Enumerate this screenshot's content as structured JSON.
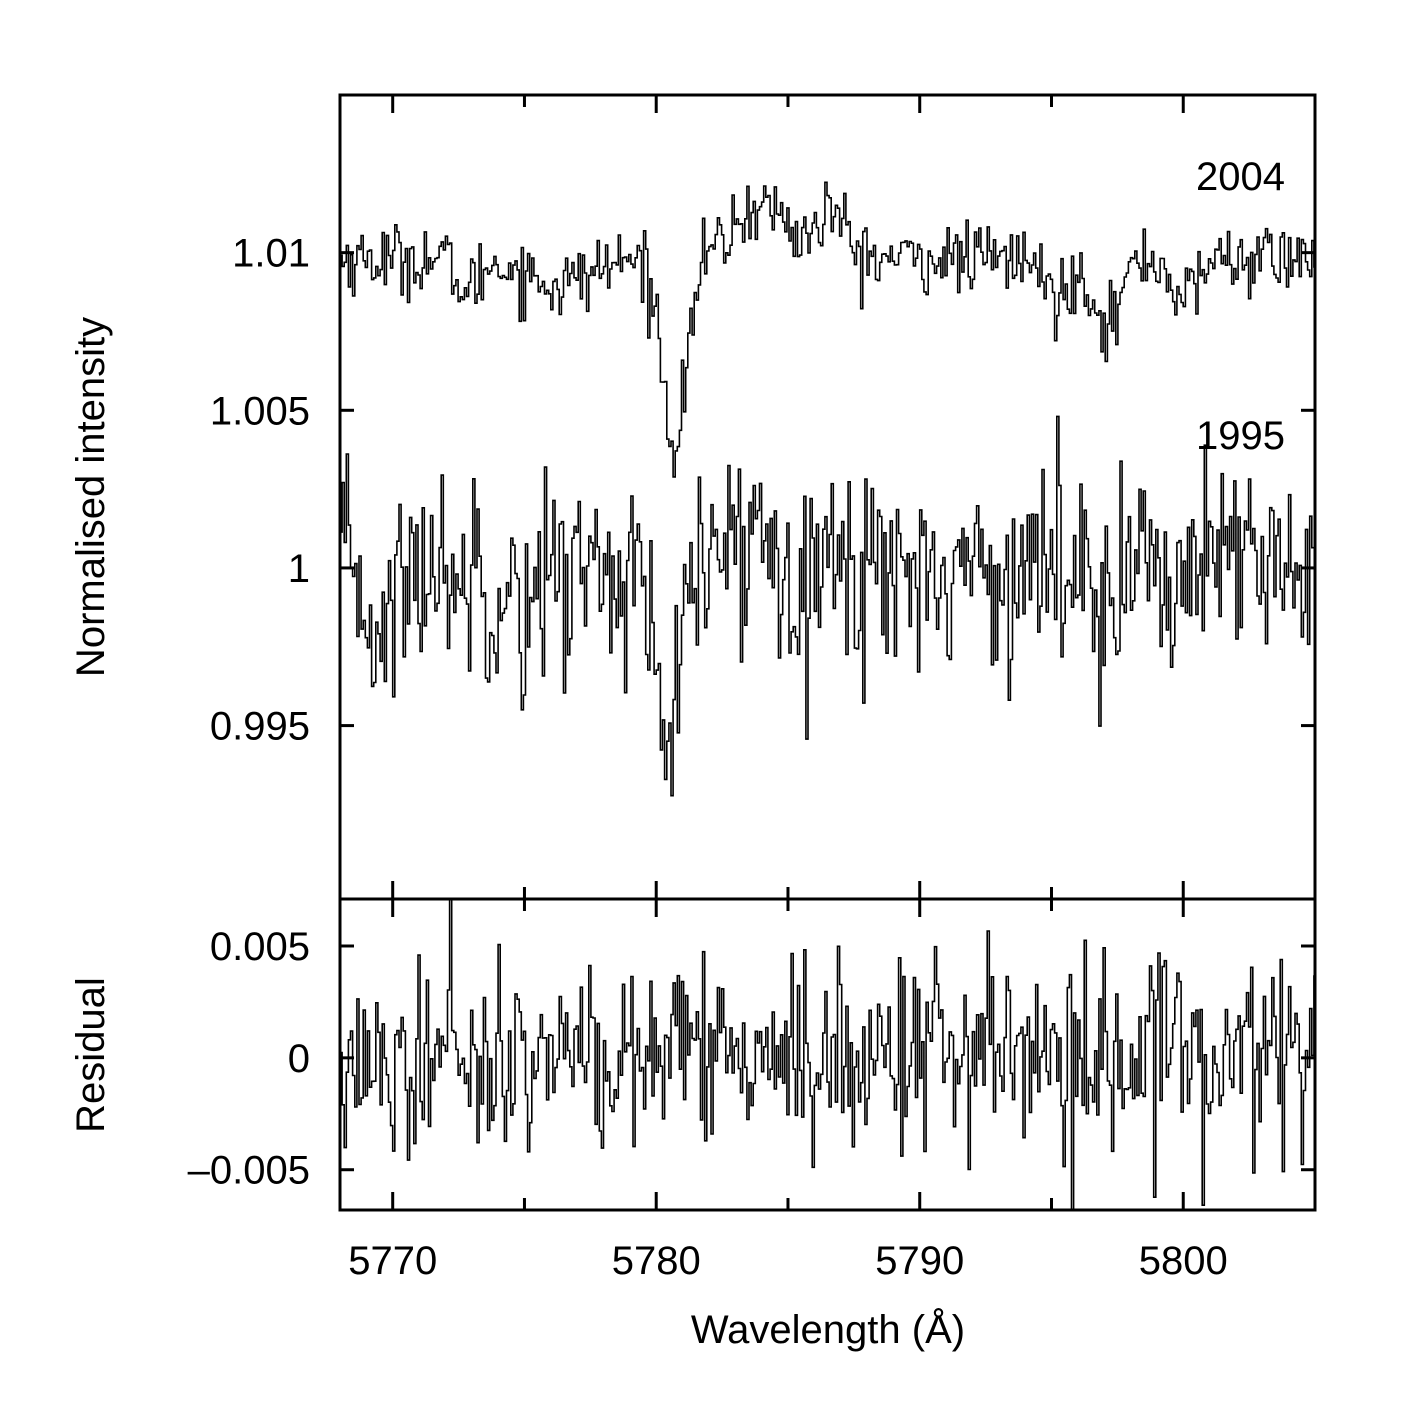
{
  "chart_data": [
    {
      "panel": "top",
      "type": "line",
      "ylabel": "Normalised intensity",
      "xlim": [
        5768,
        5805
      ],
      "ylim": [
        0.9895,
        1.015
      ],
      "yticks": [
        {
          "value": 1.01,
          "label": "1.01"
        },
        {
          "value": 1.005,
          "label": "1.005"
        },
        {
          "value": 1.0,
          "label": "1"
        },
        {
          "value": 0.995,
          "label": "0.995"
        }
      ],
      "series": [
        {
          "name": "2004",
          "step": 0.08,
          "baseline": 1.0098,
          "features": [
            {
              "center": 5780.65,
              "depth": 0.0058,
              "width": 0.45
            },
            {
              "center": 5776.2,
              "depth": 0.0008,
              "width": 1.2
            },
            {
              "center": 5797.1,
              "depth": 0.002,
              "width": 0.5
            },
            {
              "center": 5795.2,
              "depth": 0.0012,
              "width": 0.5
            },
            {
              "center": 5800.0,
              "depth": 0.0013,
              "width": 0.45
            },
            {
              "center": 5772.8,
              "depth": 0.001,
              "width": 0.4
            }
          ],
          "bumps": [
            {
              "center": 5784.0,
              "height": 0.0017,
              "width": 1.0
            },
            {
              "center": 5786.6,
              "height": 0.0015,
              "width": 0.5
            }
          ],
          "noise": 0.00055
        },
        {
          "name": "1995",
          "step": 0.08,
          "baseline": 0.99995,
          "features": [
            {
              "center": 5780.4,
              "depth": 0.0055,
              "width": 0.5
            },
            {
              "center": 5769.5,
              "depth": 0.002,
              "width": 0.5
            },
            {
              "center": 5774.8,
              "depth": 0.001,
              "width": 0.6
            }
          ],
          "bumps": [
            {
              "center": 5783.8,
              "height": 0.001,
              "width": 1.2
            }
          ],
          "noise": 0.0016
        }
      ],
      "annotations": [
        "2004",
        "1995"
      ]
    },
    {
      "panel": "bottom",
      "type": "line",
      "ylabel": "Residual",
      "xlabel": "Wavelength (Å)",
      "xlim": [
        5768,
        5805
      ],
      "ylim": [
        -0.0068,
        0.0071
      ],
      "xticks": [
        {
          "value": 5770,
          "label": "5770"
        },
        {
          "value": 5780,
          "label": "5780"
        },
        {
          "value": 5790,
          "label": "5790"
        },
        {
          "value": 5800,
          "label": "5800"
        }
      ],
      "yticks": [
        {
          "value": 0.005,
          "label": "0.005"
        },
        {
          "value": 0.0,
          "label": "0"
        },
        {
          "value": -0.005,
          "label": "–0.005"
        }
      ],
      "series": [
        {
          "name": "residual",
          "step": 0.08,
          "baseline": 0.0,
          "noise": 0.0022,
          "features": [],
          "bumps": []
        }
      ]
    }
  ]
}
